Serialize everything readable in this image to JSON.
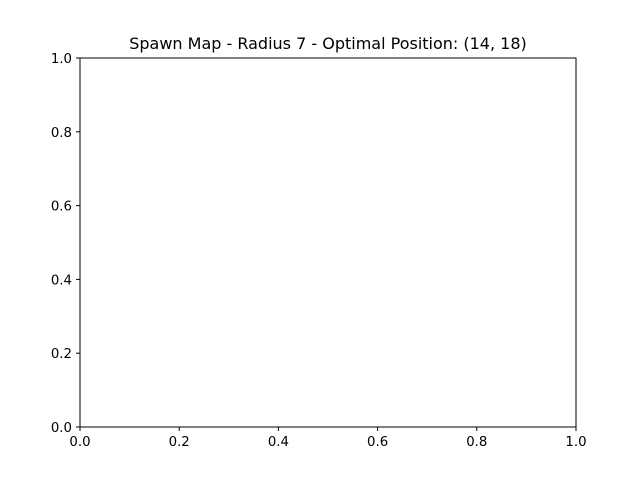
{
  "chart_data": {
    "type": "heatmap",
    "title": "Spawn Map - Radius 7 - Optimal Position: (14, 18)",
    "xlabel": "",
    "ylabel": "",
    "xlim": [
      0,
      1
    ],
    "ylim": [
      0,
      1
    ],
    "xticks": [
      0.0,
      0.2,
      0.4,
      0.6,
      0.8,
      1.0
    ],
    "yticks": [
      0.0,
      0.2,
      0.4,
      0.6,
      0.8,
      1.0
    ],
    "xtick_labels": [
      "0.0",
      "0.2",
      "0.4",
      "0.6",
      "0.8",
      "1.0"
    ],
    "ytick_labels": [
      "0.0",
      "0.2",
      "0.4",
      "0.6",
      "0.8",
      "1.0"
    ],
    "grid": false,
    "series": []
  }
}
